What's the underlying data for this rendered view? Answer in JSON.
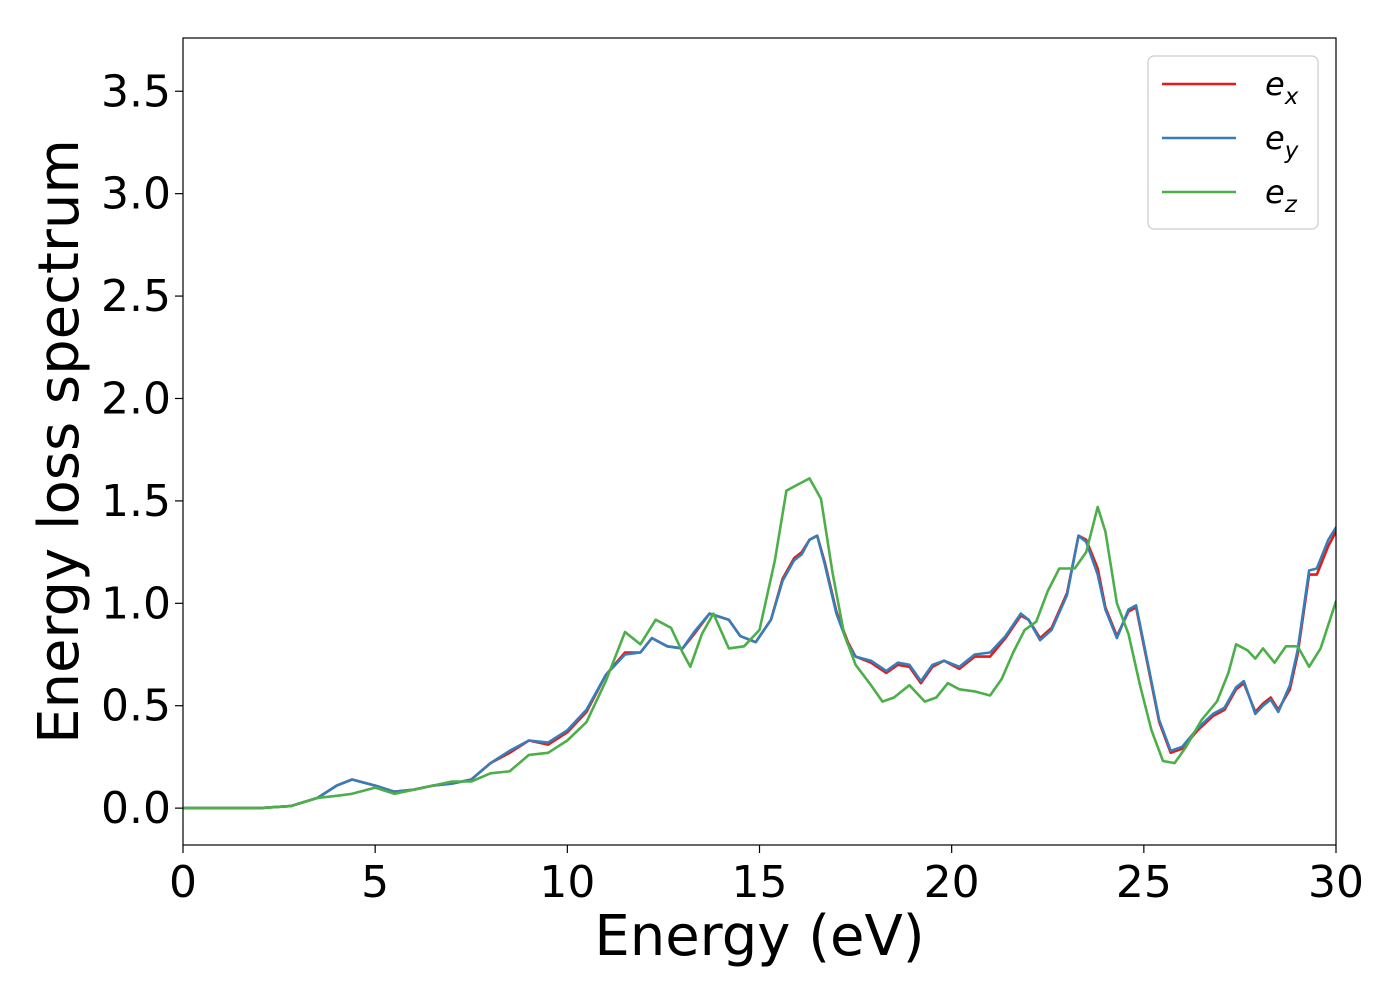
{
  "chart_data": {
    "type": "line",
    "title": "",
    "xlabel": "Energy (eV)",
    "ylabel": "Energy loss spectrum",
    "xlim": [
      0,
      30
    ],
    "ylim": [
      -0.18,
      3.76
    ],
    "xticks": [
      0,
      5,
      10,
      15,
      20,
      25,
      30
    ],
    "xtick_labels": [
      "0",
      "5",
      "10",
      "15",
      "20",
      "25",
      "30"
    ],
    "yticks": [
      0.0,
      0.5,
      1.0,
      1.5,
      2.0,
      2.5,
      3.0,
      3.5
    ],
    "ytick_labels": [
      "0.0",
      "0.5",
      "1.0",
      "1.5",
      "2.0",
      "2.5",
      "3.0",
      "3.5"
    ],
    "grid": false,
    "legend_position": "top-right",
    "series": [
      {
        "name": "e_x",
        "label_base": "e",
        "label_sub": "x",
        "color": "#e41a1c",
        "points": [
          [
            0,
            0.0
          ],
          [
            1,
            0.0
          ],
          [
            2,
            0.0
          ],
          [
            2.8,
            0.01
          ],
          [
            3.5,
            0.05
          ],
          [
            4.0,
            0.11
          ],
          [
            4.4,
            0.14
          ],
          [
            5.0,
            0.11
          ],
          [
            5.5,
            0.08
          ],
          [
            6.0,
            0.09
          ],
          [
            6.5,
            0.11
          ],
          [
            7.0,
            0.12
          ],
          [
            7.5,
            0.14
          ],
          [
            8.0,
            0.22
          ],
          [
            8.5,
            0.27
          ],
          [
            9.0,
            0.33
          ],
          [
            9.5,
            0.31
          ],
          [
            10.0,
            0.37
          ],
          [
            10.5,
            0.47
          ],
          [
            11.0,
            0.65
          ],
          [
            11.5,
            0.76
          ],
          [
            11.9,
            0.76
          ],
          [
            12.2,
            0.83
          ],
          [
            12.6,
            0.79
          ],
          [
            13.0,
            0.78
          ],
          [
            13.3,
            0.85
          ],
          [
            13.7,
            0.95
          ],
          [
            14.2,
            0.92
          ],
          [
            14.5,
            0.84
          ],
          [
            14.9,
            0.81
          ],
          [
            15.3,
            0.92
          ],
          [
            15.6,
            1.12
          ],
          [
            15.9,
            1.22
          ],
          [
            16.1,
            1.25
          ],
          [
            16.3,
            1.31
          ],
          [
            16.5,
            1.33
          ],
          [
            16.7,
            1.2
          ],
          [
            17.0,
            0.96
          ],
          [
            17.3,
            0.81
          ],
          [
            17.5,
            0.74
          ],
          [
            17.9,
            0.71
          ],
          [
            18.3,
            0.66
          ],
          [
            18.6,
            0.7
          ],
          [
            18.9,
            0.69
          ],
          [
            19.2,
            0.61
          ],
          [
            19.5,
            0.69
          ],
          [
            19.8,
            0.72
          ],
          [
            20.2,
            0.68
          ],
          [
            20.6,
            0.74
          ],
          [
            21.0,
            0.74
          ],
          [
            21.4,
            0.83
          ],
          [
            21.8,
            0.94
          ],
          [
            22.0,
            0.92
          ],
          [
            22.3,
            0.83
          ],
          [
            22.6,
            0.88
          ],
          [
            23.0,
            1.05
          ],
          [
            23.3,
            1.33
          ],
          [
            23.5,
            1.31
          ],
          [
            23.8,
            1.17
          ],
          [
            24.0,
            0.98
          ],
          [
            24.3,
            0.84
          ],
          [
            24.6,
            0.96
          ],
          [
            24.8,
            0.98
          ],
          [
            25.1,
            0.7
          ],
          [
            25.4,
            0.42
          ],
          [
            25.7,
            0.27
          ],
          [
            26.0,
            0.29
          ],
          [
            26.4,
            0.38
          ],
          [
            26.8,
            0.45
          ],
          [
            27.1,
            0.48
          ],
          [
            27.4,
            0.58
          ],
          [
            27.6,
            0.61
          ],
          [
            27.9,
            0.47
          ],
          [
            28.1,
            0.51
          ],
          [
            28.3,
            0.54
          ],
          [
            28.5,
            0.48
          ],
          [
            28.8,
            0.58
          ],
          [
            29.0,
            0.75
          ],
          [
            29.3,
            1.14
          ],
          [
            29.5,
            1.14
          ],
          [
            29.8,
            1.28
          ],
          [
            30.0,
            1.35
          ]
        ]
      },
      {
        "name": "e_y",
        "label_base": "e",
        "label_sub": "y",
        "color": "#377eb8",
        "points": [
          [
            0,
            0.0
          ],
          [
            1,
            0.0
          ],
          [
            2,
            0.0
          ],
          [
            2.8,
            0.01
          ],
          [
            3.5,
            0.05
          ],
          [
            4.0,
            0.11
          ],
          [
            4.4,
            0.14
          ],
          [
            5.0,
            0.11
          ],
          [
            5.5,
            0.08
          ],
          [
            6.0,
            0.09
          ],
          [
            6.5,
            0.11
          ],
          [
            7.0,
            0.12
          ],
          [
            7.5,
            0.14
          ],
          [
            8.0,
            0.22
          ],
          [
            8.5,
            0.28
          ],
          [
            9.0,
            0.33
          ],
          [
            9.5,
            0.32
          ],
          [
            10.0,
            0.38
          ],
          [
            10.5,
            0.48
          ],
          [
            11.0,
            0.65
          ],
          [
            11.5,
            0.75
          ],
          [
            11.9,
            0.76
          ],
          [
            12.2,
            0.83
          ],
          [
            12.6,
            0.79
          ],
          [
            13.0,
            0.78
          ],
          [
            13.3,
            0.86
          ],
          [
            13.7,
            0.95
          ],
          [
            14.2,
            0.92
          ],
          [
            14.5,
            0.84
          ],
          [
            14.9,
            0.81
          ],
          [
            15.3,
            0.92
          ],
          [
            15.6,
            1.11
          ],
          [
            15.9,
            1.21
          ],
          [
            16.1,
            1.24
          ],
          [
            16.3,
            1.31
          ],
          [
            16.5,
            1.33
          ],
          [
            16.7,
            1.19
          ],
          [
            17.0,
            0.95
          ],
          [
            17.3,
            0.8
          ],
          [
            17.5,
            0.74
          ],
          [
            17.9,
            0.72
          ],
          [
            18.3,
            0.67
          ],
          [
            18.6,
            0.71
          ],
          [
            18.9,
            0.7
          ],
          [
            19.2,
            0.62
          ],
          [
            19.5,
            0.7
          ],
          [
            19.8,
            0.72
          ],
          [
            20.2,
            0.69
          ],
          [
            20.6,
            0.75
          ],
          [
            21.0,
            0.76
          ],
          [
            21.4,
            0.84
          ],
          [
            21.8,
            0.95
          ],
          [
            22.0,
            0.92
          ],
          [
            22.3,
            0.82
          ],
          [
            22.6,
            0.87
          ],
          [
            23.0,
            1.04
          ],
          [
            23.3,
            1.33
          ],
          [
            23.5,
            1.3
          ],
          [
            23.8,
            1.14
          ],
          [
            24.0,
            0.97
          ],
          [
            24.3,
            0.83
          ],
          [
            24.6,
            0.97
          ],
          [
            24.8,
            0.99
          ],
          [
            25.1,
            0.71
          ],
          [
            25.4,
            0.43
          ],
          [
            25.7,
            0.28
          ],
          [
            26.0,
            0.3
          ],
          [
            26.4,
            0.39
          ],
          [
            26.8,
            0.46
          ],
          [
            27.1,
            0.49
          ],
          [
            27.4,
            0.59
          ],
          [
            27.6,
            0.62
          ],
          [
            27.9,
            0.46
          ],
          [
            28.1,
            0.5
          ],
          [
            28.3,
            0.53
          ],
          [
            28.5,
            0.47
          ],
          [
            28.8,
            0.6
          ],
          [
            29.0,
            0.77
          ],
          [
            29.3,
            1.16
          ],
          [
            29.5,
            1.17
          ],
          [
            29.8,
            1.31
          ],
          [
            30.0,
            1.37
          ]
        ]
      },
      {
        "name": "e_z",
        "label_base": "e",
        "label_sub": "z",
        "color": "#4daf4a",
        "points": [
          [
            0,
            0.0
          ],
          [
            1,
            0.0
          ],
          [
            2,
            0.0
          ],
          [
            2.8,
            0.01
          ],
          [
            3.5,
            0.05
          ],
          [
            4.0,
            0.06
          ],
          [
            4.4,
            0.07
          ],
          [
            5.0,
            0.1
          ],
          [
            5.5,
            0.07
          ],
          [
            6.0,
            0.09
          ],
          [
            6.5,
            0.11
          ],
          [
            7.0,
            0.13
          ],
          [
            7.5,
            0.13
          ],
          [
            8.0,
            0.17
          ],
          [
            8.5,
            0.18
          ],
          [
            9.0,
            0.26
          ],
          [
            9.5,
            0.27
          ],
          [
            10.0,
            0.33
          ],
          [
            10.5,
            0.42
          ],
          [
            11.0,
            0.62
          ],
          [
            11.5,
            0.86
          ],
          [
            11.9,
            0.8
          ],
          [
            12.3,
            0.92
          ],
          [
            12.7,
            0.88
          ],
          [
            13.0,
            0.76
          ],
          [
            13.2,
            0.69
          ],
          [
            13.5,
            0.85
          ],
          [
            13.8,
            0.95
          ],
          [
            14.2,
            0.78
          ],
          [
            14.6,
            0.79
          ],
          [
            15.0,
            0.87
          ],
          [
            15.4,
            1.21
          ],
          [
            15.7,
            1.55
          ],
          [
            16.0,
            1.58
          ],
          [
            16.3,
            1.61
          ],
          [
            16.6,
            1.51
          ],
          [
            16.9,
            1.15
          ],
          [
            17.2,
            0.85
          ],
          [
            17.5,
            0.7
          ],
          [
            17.9,
            0.6
          ],
          [
            18.2,
            0.52
          ],
          [
            18.5,
            0.54
          ],
          [
            18.9,
            0.6
          ],
          [
            19.3,
            0.52
          ],
          [
            19.6,
            0.54
          ],
          [
            19.9,
            0.61
          ],
          [
            20.2,
            0.58
          ],
          [
            20.6,
            0.57
          ],
          [
            21.0,
            0.55
          ],
          [
            21.3,
            0.63
          ],
          [
            21.6,
            0.76
          ],
          [
            21.9,
            0.87
          ],
          [
            22.2,
            0.91
          ],
          [
            22.5,
            1.06
          ],
          [
            22.8,
            1.17
          ],
          [
            23.2,
            1.17
          ],
          [
            23.5,
            1.25
          ],
          [
            23.8,
            1.47
          ],
          [
            24.0,
            1.35
          ],
          [
            24.3,
            1.0
          ],
          [
            24.6,
            0.85
          ],
          [
            24.9,
            0.6
          ],
          [
            25.2,
            0.38
          ],
          [
            25.5,
            0.23
          ],
          [
            25.8,
            0.22
          ],
          [
            26.1,
            0.3
          ],
          [
            26.5,
            0.43
          ],
          [
            26.9,
            0.52
          ],
          [
            27.2,
            0.66
          ],
          [
            27.4,
            0.8
          ],
          [
            27.7,
            0.77
          ],
          [
            27.9,
            0.73
          ],
          [
            28.1,
            0.78
          ],
          [
            28.4,
            0.71
          ],
          [
            28.7,
            0.79
          ],
          [
            29.0,
            0.79
          ],
          [
            29.3,
            0.69
          ],
          [
            29.6,
            0.78
          ],
          [
            30.0,
            1.01
          ]
        ]
      }
    ]
  }
}
